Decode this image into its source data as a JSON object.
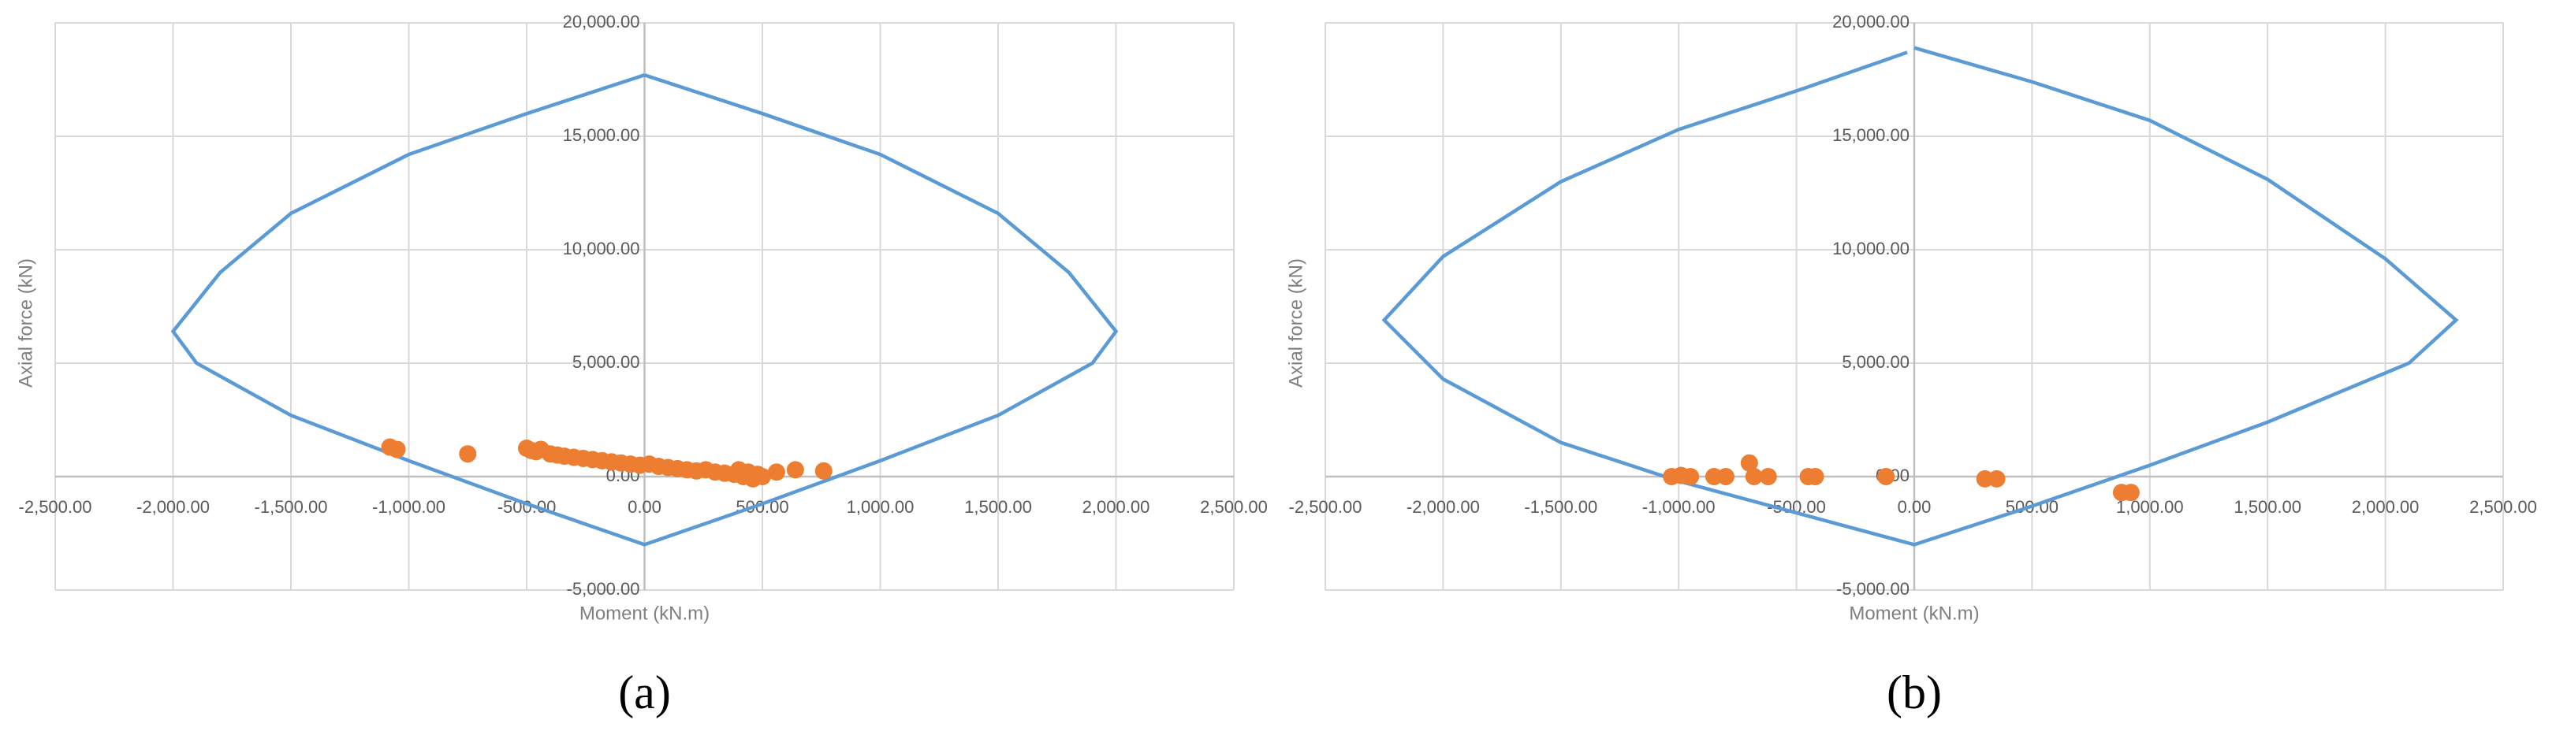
{
  "chart_data": [
    {
      "type": "scatter",
      "caption": "(a)",
      "x_label": "Moment (kN.m)",
      "y_label": "Axial force (kN)",
      "xlim": [
        -2500,
        2500
      ],
      "ylim": [
        -5000,
        20000
      ],
      "grid": true,
      "xticks": [
        {
          "value": -2500,
          "label": "-2,500.00"
        },
        {
          "value": -2000,
          "label": "-2,000.00"
        },
        {
          "value": -1500,
          "label": "-1,500.00"
        },
        {
          "value": -1000,
          "label": "-1,000.00"
        },
        {
          "value": -500,
          "label": "-500.00"
        },
        {
          "value": 0,
          "label": "0.00"
        },
        {
          "value": 500,
          "label": "500.00"
        },
        {
          "value": 1000,
          "label": "1,000.00"
        },
        {
          "value": 1500,
          "label": "1,500.00"
        },
        {
          "value": 2000,
          "label": "2,000.00"
        },
        {
          "value": 2500,
          "label": "2,500.00"
        }
      ],
      "yticks": [
        {
          "value": -5000,
          "label": "-5,000.00"
        },
        {
          "value": 0,
          "label": "0.00"
        },
        {
          "value": 5000,
          "label": "5,000.00"
        },
        {
          "value": 10000,
          "label": "10,000.00"
        },
        {
          "value": 15000,
          "label": "15,000.00"
        },
        {
          "value": 20000,
          "label": "20,000.00"
        }
      ],
      "series": [
        {
          "mode": "line",
          "color": "#5b9bd5",
          "x": [
            0,
            500,
            1000,
            1500,
            1800,
            2000,
            1900,
            1500,
            1000,
            500,
            0,
            -500,
            -1000,
            -1500,
            -1900,
            -2000,
            -1800,
            -1500,
            -1000,
            -500,
            0
          ],
          "y": [
            17700,
            16000,
            14200,
            11600,
            9000,
            6400,
            5000,
            2700,
            700,
            -1200,
            -3000,
            -1200,
            700,
            2700,
            5000,
            6400,
            9000,
            11600,
            14200,
            16000,
            17700
          ]
        },
        {
          "mode": "markers",
          "color": "#ed7d31",
          "x": [
            -1080,
            -1050,
            -750,
            -500,
            -480,
            -460,
            -440,
            -400,
            -370,
            -340,
            -300,
            -260,
            -220,
            -180,
            -140,
            -100,
            -60,
            -20,
            20,
            60,
            100,
            140,
            180,
            220,
            260,
            300,
            340,
            380,
            400,
            420,
            440,
            460,
            480,
            500,
            560,
            640,
            760
          ],
          "y": [
            1300,
            1200,
            1000,
            1250,
            1150,
            1100,
            1200,
            1000,
            950,
            900,
            850,
            800,
            750,
            700,
            650,
            600,
            550,
            500,
            550,
            450,
            400,
            350,
            300,
            250,
            300,
            200,
            150,
            100,
            300,
            0,
            200,
            -100,
            100,
            0,
            200,
            300,
            250
          ]
        }
      ]
    },
    {
      "type": "scatter",
      "caption": "(b)",
      "x_label": "Moment (kN.m)",
      "y_label": "Axial force (kN)",
      "xlim": [
        -2500,
        2500
      ],
      "ylim": [
        -5000,
        20000
      ],
      "grid": true,
      "xticks": [
        {
          "value": -2500,
          "label": "-2,500.00"
        },
        {
          "value": -2000,
          "label": "-2,000.00"
        },
        {
          "value": -1500,
          "label": "-1,500.00"
        },
        {
          "value": -1000,
          "label": "-1,000.00"
        },
        {
          "value": -500,
          "label": "-500.00"
        },
        {
          "value": 0,
          "label": "0.00"
        },
        {
          "value": 500,
          "label": "500.00"
        },
        {
          "value": 1000,
          "label": "1,000.00"
        },
        {
          "value": 1500,
          "label": "1,500.00"
        },
        {
          "value": 2000,
          "label": "2,000.00"
        },
        {
          "value": 2500,
          "label": "2,500.00"
        }
      ],
      "yticks": [
        {
          "value": -5000,
          "label": "-5,000.00"
        },
        {
          "value": 0,
          "label": "0.00"
        },
        {
          "value": 5000,
          "label": "5,000.00"
        },
        {
          "value": 10000,
          "label": "10,000.00"
        },
        {
          "value": 15000,
          "label": "15,000.00"
        },
        {
          "value": 20000,
          "label": "20,000.00"
        }
      ],
      "series": [
        {
          "mode": "line",
          "color": "#5b9bd5",
          "x": [
            0,
            500,
            1000,
            1500,
            2000,
            2300,
            2100,
            1500,
            1000,
            500,
            0,
            -500,
            -1000,
            -1500,
            -2000,
            -2250,
            -2000,
            -1500,
            -1000,
            -500,
            -30,
            -30
          ],
          "y": [
            18900,
            17400,
            15700,
            13100,
            9600,
            6900,
            5000,
            2400,
            500,
            -1300,
            -3000,
            -1600,
            -200,
            1500,
            4300,
            6900,
            9700,
            13000,
            15300,
            17000,
            18700,
            18700
          ]
        },
        {
          "mode": "markers",
          "color": "#ed7d31",
          "x": [
            -1030,
            -990,
            -950,
            -850,
            -800,
            -700,
            -680,
            -620,
            -450,
            -420,
            -120,
            300,
            350,
            880,
            920
          ],
          "y": [
            0,
            50,
            0,
            0,
            0,
            600,
            0,
            0,
            0,
            0,
            0,
            -100,
            -100,
            -700,
            -700
          ]
        }
      ]
    }
  ]
}
